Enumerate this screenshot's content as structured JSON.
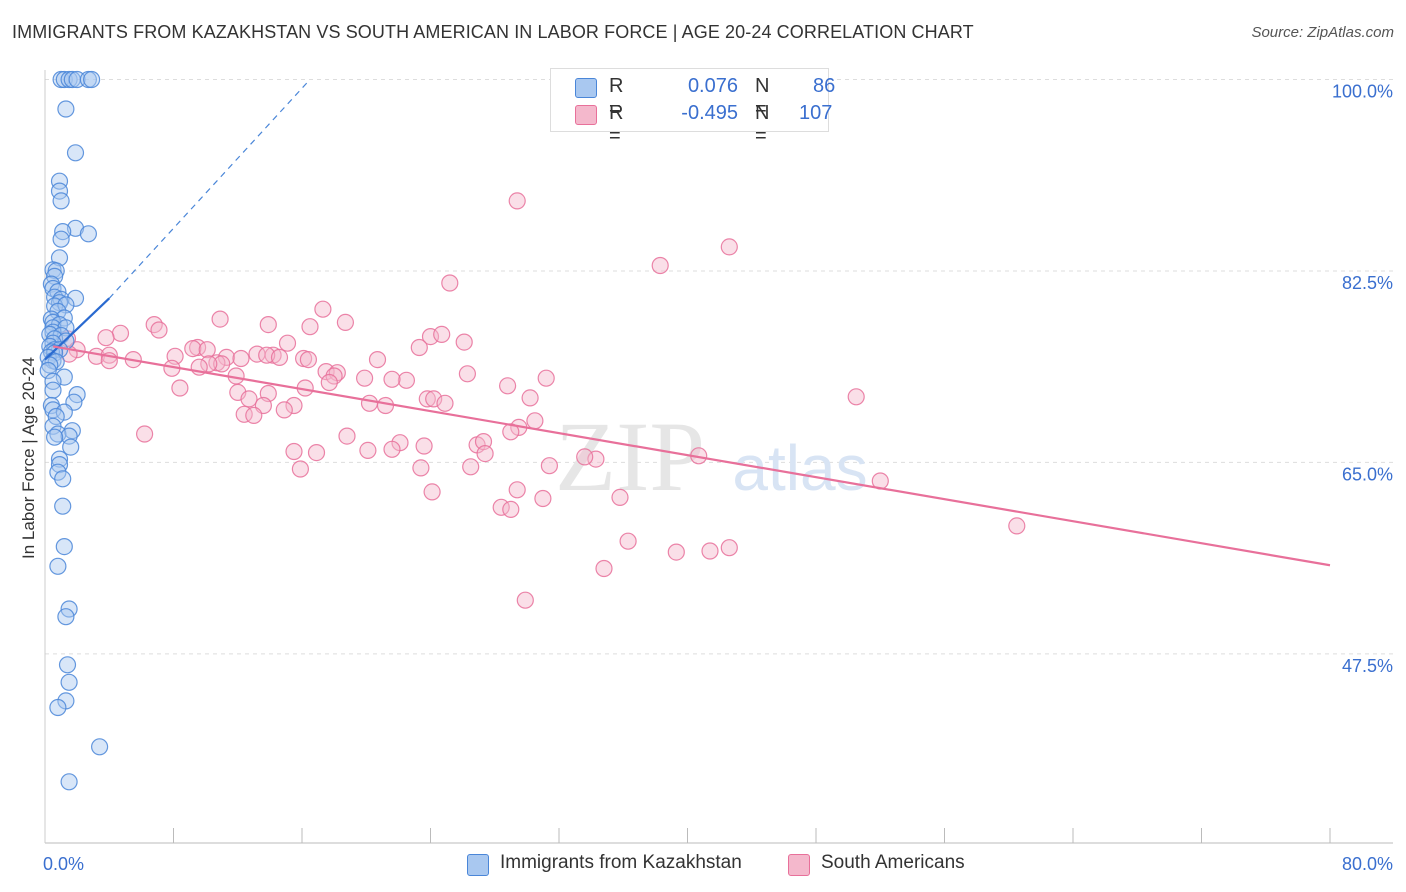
{
  "title": "IMMIGRANTS FROM KAZAKHSTAN VS SOUTH AMERICAN IN LABOR FORCE | AGE 20-24 CORRELATION CHART",
  "source": "Source: ZipAtlas.com",
  "watermark": {
    "zip": "ZIP",
    "atlas": "atlas"
  },
  "legend": {
    "r_label": "R =",
    "n_label": "N =",
    "rows": [
      {
        "r": "0.076",
        "n": "86"
      },
      {
        "r": "-0.495",
        "n": "107"
      }
    ]
  },
  "colors": {
    "blue": "#4a86d8",
    "blue_fill": "#a9c8f0",
    "pink": "#e8709a",
    "pink_fill": "#f4b8cc",
    "axis_label": "#3a6fcf",
    "grid": "#dddddd"
  },
  "chart_data": {
    "type": "scatter",
    "xlabel": "",
    "ylabel": "In Labor Force | Age 20-24",
    "xlim": [
      0,
      80
    ],
    "ylim": [
      30,
      100
    ],
    "x_tick_labels": [
      "0.0%",
      "80.0%"
    ],
    "y_ticks": [
      47.5,
      65.0,
      82.5,
      100.0
    ],
    "y_tick_labels": [
      "47.5%",
      "65.0%",
      "82.5%",
      "100.0%"
    ],
    "grid": true,
    "legend_placement": "top-center",
    "series": [
      {
        "name": "Immigrants from Kazakhstan",
        "r": 0.076,
        "n": 86,
        "trend_solid": [
          [
            0.0,
            74.4
          ],
          [
            4.0,
            80.0
          ]
        ],
        "trend_dashed": [
          [
            4.0,
            80.0
          ],
          [
            16.5,
            100.0
          ]
        ],
        "points": [
          [
            1.0,
            100.0
          ],
          [
            1.2,
            100.0
          ],
          [
            1.5,
            100.0
          ],
          [
            1.7,
            100.0
          ],
          [
            2.0,
            100.0
          ],
          [
            2.7,
            100.0
          ],
          [
            2.9,
            100.0
          ],
          [
            1.3,
            97.3
          ],
          [
            1.9,
            93.3
          ],
          [
            0.9,
            90.7
          ],
          [
            0.9,
            89.8
          ],
          [
            1.0,
            88.9
          ],
          [
            1.9,
            86.4
          ],
          [
            1.1,
            86.1
          ],
          [
            2.7,
            85.9
          ],
          [
            1.0,
            85.4
          ],
          [
            0.9,
            83.7
          ],
          [
            0.5,
            82.6
          ],
          [
            0.7,
            82.5
          ],
          [
            0.6,
            82.0
          ],
          [
            0.4,
            81.3
          ],
          [
            0.5,
            80.9
          ],
          [
            0.8,
            80.6
          ],
          [
            0.6,
            80.1
          ],
          [
            1.0,
            79.9
          ],
          [
            1.9,
            80.0
          ],
          [
            0.9,
            79.6
          ],
          [
            0.6,
            79.3
          ],
          [
            1.3,
            79.4
          ],
          [
            0.8,
            78.8
          ],
          [
            1.2,
            78.2
          ],
          [
            0.4,
            78.1
          ],
          [
            0.5,
            77.8
          ],
          [
            0.9,
            77.6
          ],
          [
            0.5,
            77.3
          ],
          [
            1.3,
            77.3
          ],
          [
            0.5,
            76.9
          ],
          [
            0.3,
            76.7
          ],
          [
            1.0,
            76.6
          ],
          [
            0.6,
            76.3
          ],
          [
            1.3,
            76.1
          ],
          [
            0.5,
            75.9
          ],
          [
            0.3,
            75.6
          ],
          [
            0.6,
            75.3
          ],
          [
            0.9,
            75.3
          ],
          [
            0.4,
            75.1
          ],
          [
            0.6,
            75.0
          ],
          [
            0.2,
            74.6
          ],
          [
            0.5,
            74.3
          ],
          [
            0.7,
            74.2
          ],
          [
            0.3,
            73.9
          ],
          [
            0.2,
            73.4
          ],
          [
            1.2,
            72.8
          ],
          [
            0.5,
            72.4
          ],
          [
            0.5,
            71.6
          ],
          [
            2.0,
            71.2
          ],
          [
            1.8,
            70.5
          ],
          [
            0.4,
            70.2
          ],
          [
            0.5,
            69.8
          ],
          [
            1.2,
            69.6
          ],
          [
            0.7,
            69.2
          ],
          [
            0.5,
            68.3
          ],
          [
            1.7,
            67.9
          ],
          [
            0.8,
            67.6
          ],
          [
            1.5,
            67.4
          ],
          [
            0.6,
            67.3
          ],
          [
            1.6,
            66.4
          ],
          [
            0.9,
            65.3
          ],
          [
            0.9,
            64.8
          ],
          [
            0.8,
            64.1
          ],
          [
            1.1,
            63.5
          ],
          [
            1.1,
            61.0
          ],
          [
            1.2,
            57.3
          ],
          [
            0.8,
            55.5
          ],
          [
            1.5,
            51.6
          ],
          [
            1.3,
            50.9
          ],
          [
            1.4,
            46.5
          ],
          [
            1.5,
            44.9
          ],
          [
            1.3,
            43.2
          ],
          [
            0.8,
            42.6
          ],
          [
            3.4,
            39.0
          ],
          [
            1.5,
            35.8
          ]
        ]
      },
      {
        "name": "South Americans",
        "r": -0.495,
        "n": 107,
        "trend_solid": [
          [
            0.5,
            75.6
          ],
          [
            80.0,
            55.6
          ]
        ],
        "points": [
          [
            29.4,
            88.9
          ],
          [
            42.6,
            84.7
          ],
          [
            38.3,
            83.0
          ],
          [
            25.2,
            81.4
          ],
          [
            17.3,
            79.0
          ],
          [
            10.9,
            78.1
          ],
          [
            18.7,
            77.8
          ],
          [
            6.8,
            77.6
          ],
          [
            13.9,
            77.6
          ],
          [
            7.1,
            77.1
          ],
          [
            16.5,
            77.4
          ],
          [
            4.7,
            76.8
          ],
          [
            1.4,
            76.3
          ],
          [
            24.0,
            76.5
          ],
          [
            24.7,
            76.7
          ],
          [
            3.8,
            76.4
          ],
          [
            26.1,
            76.0
          ],
          [
            15.1,
            75.9
          ],
          [
            23.3,
            75.5
          ],
          [
            9.5,
            75.5
          ],
          [
            2.0,
            75.3
          ],
          [
            9.2,
            75.4
          ],
          [
            10.1,
            75.3
          ],
          [
            1.5,
            74.9
          ],
          [
            3.2,
            74.7
          ],
          [
            4.0,
            74.8
          ],
          [
            13.2,
            74.9
          ],
          [
            14.2,
            74.8
          ],
          [
            8.1,
            74.7
          ],
          [
            13.8,
            74.8
          ],
          [
            14.6,
            74.6
          ],
          [
            11.3,
            74.6
          ],
          [
            12.2,
            74.5
          ],
          [
            16.1,
            74.5
          ],
          [
            20.7,
            74.4
          ],
          [
            5.5,
            74.4
          ],
          [
            16.4,
            74.4
          ],
          [
            4.0,
            74.3
          ],
          [
            10.7,
            74.1
          ],
          [
            11.0,
            74.0
          ],
          [
            10.2,
            74.0
          ],
          [
            9.6,
            73.7
          ],
          [
            7.9,
            73.6
          ],
          [
            17.5,
            73.3
          ],
          [
            18.2,
            73.2
          ],
          [
            18.0,
            72.9
          ],
          [
            26.3,
            73.1
          ],
          [
            11.9,
            72.9
          ],
          [
            19.9,
            72.7
          ],
          [
            31.2,
            72.7
          ],
          [
            22.5,
            72.5
          ],
          [
            21.6,
            72.6
          ],
          [
            17.7,
            72.3
          ],
          [
            28.8,
            72.0
          ],
          [
            16.2,
            71.8
          ],
          [
            8.4,
            71.8
          ],
          [
            12.0,
            71.4
          ],
          [
            13.9,
            71.3
          ],
          [
            23.8,
            70.8
          ],
          [
            24.2,
            70.8
          ],
          [
            12.7,
            70.8
          ],
          [
            30.2,
            70.9
          ],
          [
            24.9,
            70.4
          ],
          [
            13.6,
            70.2
          ],
          [
            20.2,
            70.4
          ],
          [
            21.2,
            70.2
          ],
          [
            15.5,
            70.2
          ],
          [
            14.9,
            69.8
          ],
          [
            12.4,
            69.4
          ],
          [
            13.0,
            69.3
          ],
          [
            29.5,
            68.2
          ],
          [
            30.5,
            68.8
          ],
          [
            29.0,
            67.8
          ],
          [
            6.2,
            67.6
          ],
          [
            18.8,
            67.4
          ],
          [
            22.1,
            66.8
          ],
          [
            23.6,
            66.5
          ],
          [
            26.9,
            66.6
          ],
          [
            27.3,
            66.9
          ],
          [
            15.5,
            66.0
          ],
          [
            16.9,
            65.9
          ],
          [
            21.6,
            66.2
          ],
          [
            20.1,
            66.1
          ],
          [
            27.4,
            65.8
          ],
          [
            34.3,
            65.3
          ],
          [
            33.6,
            65.5
          ],
          [
            40.7,
            65.6
          ],
          [
            31.4,
            64.7
          ],
          [
            23.4,
            64.5
          ],
          [
            15.9,
            64.4
          ],
          [
            26.5,
            64.6
          ],
          [
            24.1,
            62.3
          ],
          [
            29.4,
            62.5
          ],
          [
            35.8,
            61.8
          ],
          [
            31.0,
            61.7
          ],
          [
            28.4,
            60.9
          ],
          [
            29.0,
            60.7
          ],
          [
            36.3,
            57.8
          ],
          [
            42.6,
            57.2
          ],
          [
            41.4,
            56.9
          ],
          [
            39.3,
            56.8
          ],
          [
            34.8,
            55.3
          ],
          [
            29.9,
            52.4
          ],
          [
            60.5,
            59.2
          ],
          [
            52.0,
            63.3
          ],
          [
            50.5,
            71.0
          ]
        ]
      }
    ]
  }
}
